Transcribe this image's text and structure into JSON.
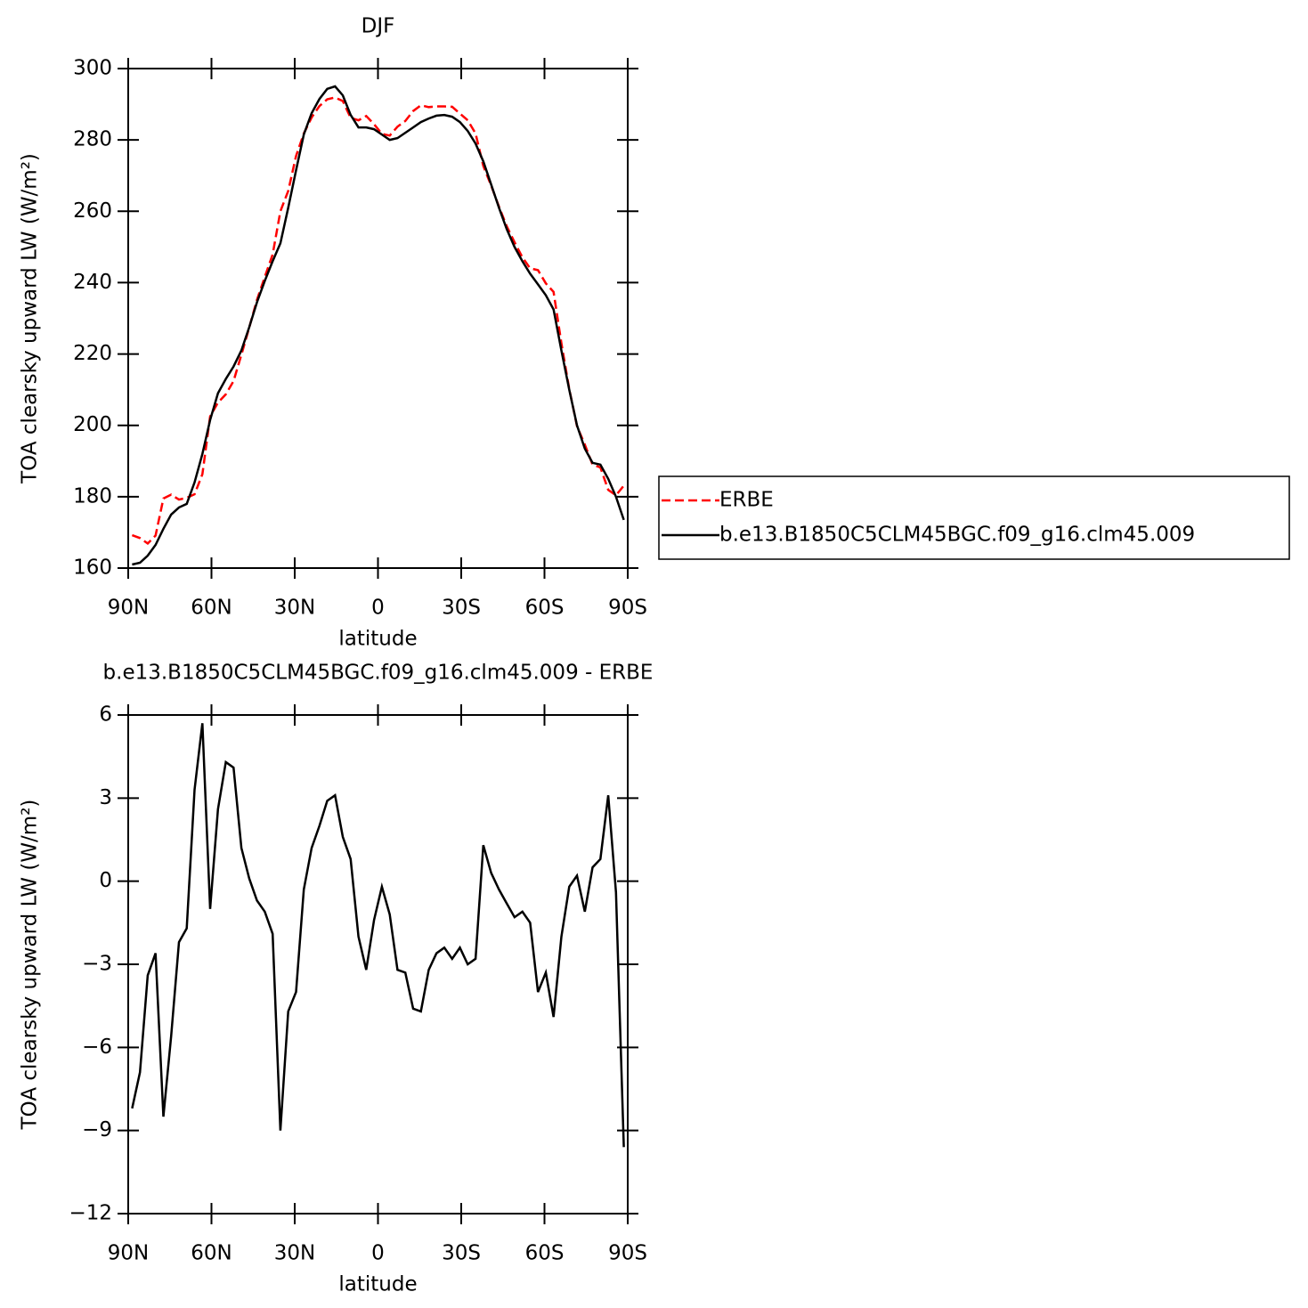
{
  "chart_data": [
    {
      "type": "line",
      "title": "DJF",
      "xlabel": "latitude",
      "ylabel": "TOA clearsky upward LW (W/m²)",
      "x": [
        88.59,
        85.78,
        82.97,
        80.16,
        77.34,
        74.53,
        71.72,
        68.91,
        66.09,
        63.28,
        60.47,
        57.66,
        54.84,
        52.03,
        49.22,
        46.41,
        43.59,
        40.78,
        37.97,
        35.16,
        32.34,
        29.53,
        26.72,
        23.91,
        21.09,
        18.28,
        15.47,
        12.66,
        9.84,
        7.03,
        4.22,
        1.41,
        -1.41,
        -4.22,
        -7.03,
        -9.84,
        -12.66,
        -15.47,
        -18.28,
        -21.09,
        -23.91,
        -26.72,
        -29.53,
        -32.34,
        -35.16,
        -37.97,
        -40.78,
        -43.59,
        -46.41,
        -49.22,
        -52.03,
        -54.84,
        -57.66,
        -60.47,
        -63.28,
        -66.09,
        -68.91,
        -71.72,
        -74.53,
        -77.34,
        -80.16,
        -82.97,
        -85.78,
        -88.59
      ],
      "series": [
        {
          "name": "ERBE",
          "color": "#ff0000",
          "linestyle": "dashed",
          "values": [
            169.2,
            168.4,
            166.9,
            169.1,
            179.5,
            180.6,
            179.2,
            179.7,
            180.7,
            186.3,
            202.5,
            206.4,
            208.7,
            212.4,
            219.8,
            227.4,
            235.2,
            241.6,
            247.9,
            260.0,
            265.7,
            275.5,
            281.8,
            286.3,
            289.5,
            291.4,
            291.9,
            290.9,
            286.2,
            285.5,
            286.7,
            284.4,
            281.7,
            281.2,
            283.7,
            285.3,
            288.1,
            289.7,
            289.2,
            289.4,
            289.4,
            289.3,
            287.4,
            285.5,
            281.8,
            272.7,
            267.2,
            261.3,
            255.8,
            251.3,
            247.1,
            244.0,
            243.5,
            239.8,
            237.4,
            223.0,
            210.2,
            199.8,
            194.6,
            189.0,
            188.2,
            181.9,
            180.4,
            183.1
          ]
        },
        {
          "name": "b.e13.B1850C5CLM45BGC.f09_g16.clm45.009",
          "color": "#000000",
          "linestyle": "solid",
          "values": [
            161,
            161.5,
            163.5,
            166.5,
            171,
            175,
            177,
            178,
            184,
            192,
            201.5,
            209,
            213,
            216.5,
            221,
            227.5,
            234.5,
            240.5,
            246,
            251,
            261,
            271.5,
            281.5,
            287.5,
            291.5,
            294.3,
            295,
            292.5,
            287,
            283.5,
            283.5,
            283,
            281.5,
            280,
            280.5,
            282,
            283.5,
            285,
            286,
            286.8,
            287,
            286.5,
            285,
            282.5,
            279,
            274,
            267.5,
            261,
            255,
            250,
            246,
            242.5,
            239.5,
            236.5,
            232.5,
            221,
            210,
            200,
            193.5,
            189.5,
            189,
            185,
            180,
            173.5
          ]
        }
      ],
      "xlim": [
        90,
        -90
      ],
      "ylim": [
        160,
        300
      ],
      "xticks": [
        {
          "value": 90,
          "label": "90N"
        },
        {
          "value": 60,
          "label": "60N"
        },
        {
          "value": 30,
          "label": "30N"
        },
        0,
        {
          "value": -30,
          "label": "30S"
        },
        {
          "value": -60,
          "label": "60S"
        },
        {
          "value": -90,
          "label": "90S"
        }
      ],
      "yticks": [
        160,
        180,
        200,
        220,
        240,
        260,
        280,
        300
      ],
      "legend": "right"
    },
    {
      "type": "line",
      "title": "b.e13.B1850C5CLM45BGC.f09_g16.clm45.009 - ERBE",
      "xlabel": "latitude",
      "ylabel": "TOA clearsky upward LW (W/m²)",
      "x": [
        88.59,
        85.78,
        82.97,
        80.16,
        77.34,
        74.53,
        71.72,
        68.91,
        66.09,
        63.28,
        60.47,
        57.66,
        54.84,
        52.03,
        49.22,
        46.41,
        43.59,
        40.78,
        37.97,
        35.16,
        32.34,
        29.53,
        26.72,
        23.91,
        21.09,
        18.28,
        15.47,
        12.66,
        9.84,
        7.03,
        4.22,
        1.41,
        -1.41,
        -4.22,
        -7.03,
        -9.84,
        -12.66,
        -15.47,
        -18.28,
        -21.09,
        -23.91,
        -26.72,
        -29.53,
        -32.34,
        -35.16,
        -37.97,
        -40.78,
        -43.59,
        -46.41,
        -49.22,
        -52.03,
        -54.84,
        -57.66,
        -60.47,
        -63.28,
        -66.09,
        -68.91,
        -71.72,
        -74.53,
        -77.34,
        -80.16,
        -82.97,
        -85.78,
        -88.59
      ],
      "series": [
        {
          "color": "#000000",
          "linestyle": "solid",
          "values": [
            -8.2,
            -6.9,
            -3.4,
            -2.6,
            -8.5,
            -5.6,
            -2.2,
            -1.7,
            3.3,
            5.7,
            -1.0,
            2.6,
            4.3,
            4.1,
            1.2,
            0.1,
            -0.7,
            -1.1,
            -1.9,
            -9.0,
            -4.7,
            -4.0,
            -0.3,
            1.2,
            2.0,
            2.9,
            3.1,
            1.6,
            0.8,
            -2.0,
            -3.2,
            -1.4,
            -0.2,
            -1.2,
            -3.2,
            -3.3,
            -4.6,
            -4.7,
            -3.2,
            -2.6,
            -2.4,
            -2.8,
            -2.4,
            -3.0,
            -2.8,
            1.3,
            0.3,
            -0.3,
            -0.8,
            -1.3,
            -1.1,
            -1.5,
            -4.0,
            -3.3,
            -4.9,
            -2.0,
            -0.2,
            0.2,
            -1.1,
            0.5,
            0.8,
            3.1,
            -0.4,
            -9.6
          ]
        }
      ],
      "xlim": [
        90,
        -90
      ],
      "ylim": [
        -12,
        6
      ],
      "xticks": [
        {
          "value": 90,
          "label": "90N"
        },
        {
          "value": 60,
          "label": "60N"
        },
        {
          "value": 30,
          "label": "30N"
        },
        0,
        {
          "value": -30,
          "label": "30S"
        },
        {
          "value": -60,
          "label": "60S"
        },
        {
          "value": -90,
          "label": "90S"
        }
      ],
      "yticks": [
        {
          "value": -12,
          "label": "−12"
        },
        {
          "value": -9,
          "label": "−9"
        },
        {
          "value": -6,
          "label": "−6"
        },
        {
          "value": -3,
          "label": "−3"
        },
        0,
        3,
        6
      ]
    }
  ]
}
